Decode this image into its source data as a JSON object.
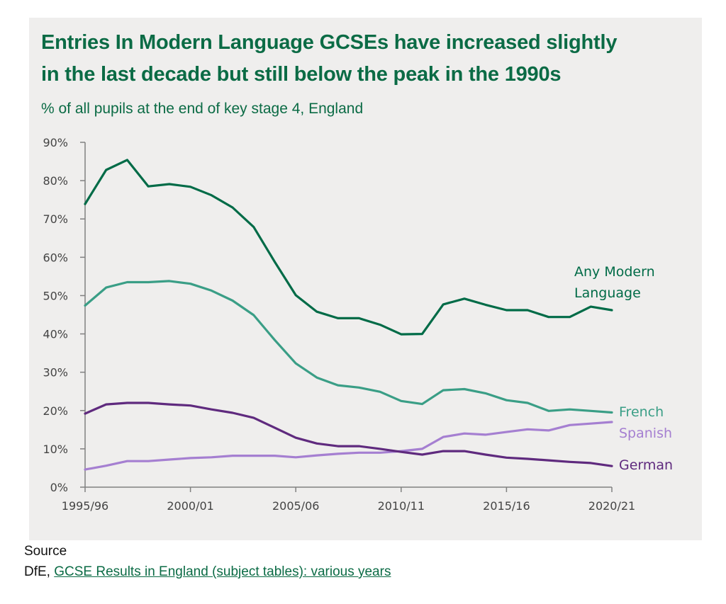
{
  "chart_data": {
    "type": "line",
    "title": "Entries In Modern Language GCSEs have increased slightly in the last decade but still below the peak in the 1990s",
    "title_lines": [
      "Entries In Modern Language GCSEs have increased slightly",
      "in the last decade but still below the peak in the 1990s"
    ],
    "subtitle": "% of all pupils at the end of key stage 4, England",
    "xlabel": "",
    "ylabel": "",
    "ylim": [
      0,
      90
    ],
    "grid": false,
    "legend": "direct labels at line ends (right)",
    "x": [
      "1995/96",
      "1996/97",
      "1997/98",
      "1998/99",
      "1999/00",
      "2000/01",
      "2001/02",
      "2002/03",
      "2003/04",
      "2004/05",
      "2005/06",
      "2006/07",
      "2007/08",
      "2008/09",
      "2009/10",
      "2010/11",
      "2011/12",
      "2012/13",
      "2013/14",
      "2014/15",
      "2015/16",
      "2016/17",
      "2017/18",
      "2018/19",
      "2019/20",
      "2020/21"
    ],
    "x_tick_labels": [
      "1995/96",
      "2000/01",
      "2005/06",
      "2010/11",
      "2015/16",
      "2020/21"
    ],
    "x_tick_indices": [
      0,
      5,
      10,
      15,
      20,
      25
    ],
    "y_ticks": [
      0,
      10,
      20,
      30,
      40,
      50,
      60,
      70,
      80,
      90
    ],
    "y_tick_labels": [
      "0%",
      "10%",
      "20%",
      "30%",
      "40%",
      "50%",
      "60%",
      "70%",
      "80%",
      "90%"
    ],
    "series": [
      {
        "name": "Any Modern Language",
        "label_lines": [
          "Any Modern",
          "Language"
        ],
        "color": "#006b47",
        "values": [
          73.9,
          82.8,
          85.4,
          78.5,
          79.1,
          78.4,
          76.2,
          73.0,
          67.9,
          58.8,
          50.1,
          45.8,
          44.1,
          44.1,
          42.4,
          39.9,
          40.0,
          47.7,
          49.2,
          47.6,
          46.2,
          46.2,
          44.4,
          44.4,
          47.1,
          46.2
        ]
      },
      {
        "name": "French",
        "label_lines": [
          "French"
        ],
        "color": "#3a9e86",
        "values": [
          47.4,
          52.1,
          53.5,
          53.5,
          53.8,
          53.1,
          51.3,
          48.7,
          44.9,
          38.4,
          32.3,
          28.6,
          26.6,
          26.0,
          24.9,
          22.5,
          21.7,
          25.3,
          25.6,
          24.5,
          22.7,
          22.0,
          19.9,
          20.3,
          19.9,
          19.5
        ]
      },
      {
        "name": "Spanish",
        "label_lines": [
          "Spanish"
        ],
        "color": "#a57fd1",
        "values": [
          4.6,
          5.6,
          6.8,
          6.8,
          7.2,
          7.6,
          7.8,
          8.2,
          8.2,
          8.2,
          7.8,
          8.3,
          8.7,
          9.0,
          9.0,
          9.4,
          10.0,
          13.1,
          14.0,
          13.7,
          14.4,
          15.1,
          14.8,
          16.2,
          16.6,
          17.0
        ]
      },
      {
        "name": "German",
        "label_lines": [
          "German"
        ],
        "color": "#5f2a7e",
        "values": [
          19.2,
          21.6,
          22.0,
          22.0,
          21.6,
          21.3,
          20.3,
          19.4,
          18.1,
          15.5,
          12.9,
          11.4,
          10.7,
          10.7,
          10.0,
          9.2,
          8.5,
          9.4,
          9.4,
          8.5,
          7.7,
          7.4,
          7.0,
          6.6,
          6.3,
          5.5
        ]
      }
    ]
  },
  "source": {
    "heading": "Source",
    "prefix": "DfE, ",
    "link_text": "GCSE Results in England (subject tables): various years"
  },
  "colors": {
    "title": "#0b6b45",
    "panel_background": "#efeeed",
    "axis": "#808080"
  }
}
